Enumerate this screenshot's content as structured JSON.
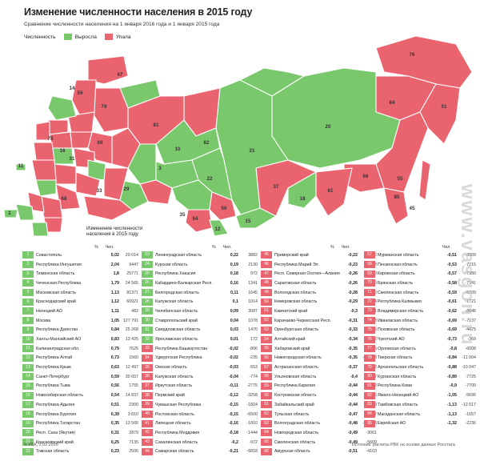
{
  "title": "Изменение численности населения в 2015 году",
  "subtitle": "Сравнение численности населения на 1 января 2016 года и 1 января 2015 года",
  "legend": {
    "label": "Численность",
    "grow_label": "Выросла",
    "fall_label": "Упала",
    "grow_color": "#7ac86c",
    "fall_color": "#ea6470"
  },
  "table_header": {
    "line1": "Изменение численности",
    "line2": "населения в 2015 году",
    "pct": "%",
    "abs": "Чел."
  },
  "columns": [
    [
      {
        "n": "1",
        "name": "Севастополь",
        "pct": "5,02",
        "abs": "20 014",
        "g": true
      },
      {
        "n": "2",
        "name": "Республика Ингушетия",
        "pct": "2,04",
        "abs": "9447",
        "g": true
      },
      {
        "n": "3",
        "name": "Тюменская область",
        "pct": "1,8",
        "abs": "25771",
        "g": true
      },
      {
        "n": "4",
        "name": "Чеченская Республика",
        "pct": "1,79",
        "abs": "24 565",
        "g": true
      },
      {
        "n": "5",
        "name": "Московская область",
        "pct": "1,13",
        "abs": "81371",
        "g": true
      },
      {
        "n": "6",
        "name": "Краснодарский край",
        "pct": "1,12",
        "abs": "60921",
        "g": true
      },
      {
        "n": "7",
        "name": "Ненецкий АО",
        "pct": "1,11",
        "abs": "482",
        "g": true
      },
      {
        "n": "8",
        "name": "Москва",
        "pct": "1,05",
        "abs": "127 791",
        "g": true
      },
      {
        "n": "9",
        "name": "Республика Дагестан",
        "pct": "0,84",
        "abs": "25 268",
        "g": true
      },
      {
        "n": "10",
        "name": "Ханты-Мансийский АО",
        "pct": "0,83",
        "abs": "13 425",
        "g": true
      },
      {
        "n": "11",
        "name": "Калининградская обл.",
        "pct": "0,79",
        "abs": "7625",
        "g": true
      },
      {
        "n": "12",
        "name": "Республика Алтай",
        "pct": "0,73",
        "abs": "1560",
        "g": true
      },
      {
        "n": "13",
        "name": "Республика Крым",
        "pct": "0,63",
        "abs": "12 497",
        "g": true
      },
      {
        "n": "14",
        "name": "Санкт-Петербург",
        "pct": "0,59",
        "abs": "30 657",
        "g": true
      },
      {
        "n": "15",
        "name": "Республика Тыва",
        "pct": "0,56",
        "abs": "1755",
        "g": true
      },
      {
        "n": "16",
        "name": "Новосибирская область",
        "pct": "0,54",
        "abs": "14 837",
        "g": true
      },
      {
        "n": "17",
        "name": "Республика Адыгея",
        "pct": "0,51",
        "abs": "2300",
        "g": true
      },
      {
        "n": "18",
        "name": "Республика Бурятия",
        "pct": "0,39",
        "abs": "3 810",
        "g": true
      },
      {
        "n": "19",
        "name": "Республика Татарстан",
        "pct": "0,35",
        "abs": "13 500",
        "g": true
      },
      {
        "n": "20",
        "name": "Респ. Саха (Якутия)",
        "pct": "0,31",
        "abs": "2879",
        "g": true
      },
      {
        "n": "21",
        "name": "Красноярский край",
        "pct": "0,25",
        "abs": "7135",
        "g": true
      },
      {
        "n": "22",
        "name": "Томская область",
        "pct": "0,23",
        "abs": "2506",
        "g": true
      }
    ],
    [
      {
        "n": "23",
        "name": "Ленинградская область",
        "pct": "0,22",
        "abs": "3882",
        "g": true
      },
      {
        "n": "24",
        "name": "Курская область",
        "pct": "0,19",
        "abs": "2130",
        "g": true
      },
      {
        "n": "25",
        "name": "Республика Хакасия",
        "pct": "0,18",
        "abs": "972",
        "g": true
      },
      {
        "n": "26",
        "name": "Кабардино-Балкарская Респ.",
        "pct": "0,16",
        "abs": "1341",
        "g": true
      },
      {
        "n": "27",
        "name": "Белгородская область",
        "pct": "0,11",
        "abs": "1645",
        "g": true
      },
      {
        "n": "28",
        "name": "Калужская область",
        "pct": "0,1",
        "abs": "1014",
        "g": true
      },
      {
        "n": "29",
        "name": "Челябинская область",
        "pct": "0,09",
        "abs": "3087",
        "g": true
      },
      {
        "n": "30",
        "name": "Ставропольский край",
        "pct": "0,04",
        "abs": "1078",
        "g": true
      },
      {
        "n": "31",
        "name": "Свердловская область",
        "pct": "0,03",
        "abs": "1470",
        "g": true
      },
      {
        "n": "32",
        "name": "Ярославская область",
        "pct": "0,01",
        "abs": "172",
        "g": true
      },
      {
        "n": "33",
        "name": "Республика Башкортостан",
        "pct": "-0,02",
        "abs": "-806",
        "g": false
      },
      {
        "n": "34",
        "name": "Удмуртская Республика",
        "pct": "-0,02",
        "abs": "-235",
        "g": false
      },
      {
        "n": "35",
        "name": "Омская область",
        "pct": "-0,03",
        "abs": "-553",
        "g": false
      },
      {
        "n": "36",
        "name": "Калужская область",
        "pct": "-0,04",
        "abs": "-774",
        "g": false
      },
      {
        "n": "37",
        "name": "Иркутская область",
        "pct": "-0,11",
        "abs": "-2775",
        "g": false
      },
      {
        "n": "38",
        "name": "Пермский край",
        "pct": "-0,12",
        "abs": "-3258",
        "g": false
      },
      {
        "n": "39",
        "name": "Чувашская Республика",
        "pct": "-0,15",
        "abs": "-1824",
        "g": false
      },
      {
        "n": "40",
        "name": "Ростовская область",
        "pct": "-0,15",
        "abs": "-6500",
        "g": false
      },
      {
        "n": "41",
        "name": "Липецкая область",
        "pct": "-0,16",
        "abs": "-1810",
        "g": false
      },
      {
        "n": "42",
        "name": "Республика Мордовия",
        "pct": "-0,18",
        "abs": "-1444",
        "g": false
      },
      {
        "n": "43",
        "name": "Сахалинская область",
        "pct": "-0,2",
        "abs": "-972",
        "g": false
      },
      {
        "n": "44",
        "name": "Самарская область",
        "pct": "-0,21",
        "abs": "-6818",
        "g": false
      }
    ],
    [
      {
        "n": "45",
        "name": "Приморский край",
        "pct": "-0,22",
        "abs": "-4346",
        "g": false
      },
      {
        "n": "46",
        "name": "Республика Марий Эл",
        "pct": "-0,23",
        "abs": "-1583",
        "g": false
      },
      {
        "n": "47",
        "name": "Респ. Северная Осетия—Алания",
        "pct": "-0,26",
        "abs": "-1800",
        "g": false
      },
      {
        "n": "48",
        "name": "Саратовская область",
        "pct": "-0,26",
        "abs": "-6370",
        "g": false
      },
      {
        "n": "49",
        "name": "Вологодская область",
        "pct": "-0,28",
        "abs": "-3350",
        "g": false
      },
      {
        "n": "50",
        "name": "Кемеровская область",
        "pct": "-0,29",
        "abs": "-7814",
        "g": false
      },
      {
        "n": "51",
        "name": "Камчатский край",
        "pct": "-0,3",
        "abs": "-941",
        "g": false
      },
      {
        "n": "52",
        "name": "Карачаево-Черкесская Респ.",
        "pct": "-0,31",
        "abs": "-1443",
        "g": false
      },
      {
        "n": "53",
        "name": "Оренбургская область",
        "pct": "-0,33",
        "abs": "-6675",
        "g": false
      },
      {
        "n": "54",
        "name": "Алтайский край",
        "pct": "-0,34",
        "abs": "-8152",
        "g": false
      },
      {
        "n": "55",
        "name": "Хабаровский край",
        "pct": "-0,35",
        "abs": "-4695",
        "g": false
      },
      {
        "n": "56",
        "name": "Нижегородская область",
        "pct": "-0,35",
        "abs": "-11 558",
        "g": false
      },
      {
        "n": "57",
        "name": "Астраханская область",
        "pct": "-0,37",
        "abs": "-3792",
        "g": false
      },
      {
        "n": "58",
        "name": "Ульяновская область",
        "pct": "-0,4",
        "abs": "-5017",
        "g": false
      },
      {
        "n": "59",
        "name": "Республика Карелия",
        "pct": "-0,44",
        "abs": "-2762",
        "g": false
      },
      {
        "n": "60",
        "name": "Костромская область",
        "pct": "-0,44",
        "abs": "-2866",
        "g": false
      },
      {
        "n": "61",
        "name": "Забайкальский край",
        "pct": "-0,44",
        "abs": "-4819",
        "g": false
      },
      {
        "n": "62",
        "name": "Тульская область",
        "pct": "-0,47",
        "abs": "-7087",
        "g": false
      },
      {
        "n": "63",
        "name": "Волгоградская область",
        "pct": "-0,48",
        "abs": "-12 448",
        "g": false
      },
      {
        "n": "64",
        "name": "Новгородская область",
        "pct": "-0,49",
        "abs": "-3061",
        "g": false
      },
      {
        "n": "65",
        "name": "Смоленская область",
        "pct": "-0,49",
        "abs": "-5609",
        "g": false
      },
      {
        "n": "66",
        "name": "Амурская область",
        "pct": "-0,51",
        "abs": "-4103",
        "g": false
      }
    ],
    [
      {
        "n": "67",
        "name": "Мурманская область",
        "pct": "-0,51",
        "abs": "-3909",
        "g": false
      },
      {
        "n": "68",
        "name": "Пензенская область",
        "pct": "-0,53",
        "abs": "-7215",
        "g": false
      },
      {
        "n": "69",
        "name": "Кировская область",
        "pct": "-0,57",
        "abs": "-7380",
        "g": false
      },
      {
        "n": "70",
        "name": "Брянская область",
        "pct": "-0,58",
        "abs": "-7141",
        "g": false
      },
      {
        "n": "71",
        "name": "Смоленская область",
        "pct": "-0,59",
        "abs": "-5709",
        "g": false
      },
      {
        "n": "72",
        "name": "Республика Калмыкия",
        "pct": "-0,61",
        "abs": "-1721",
        "g": false
      },
      {
        "n": "73",
        "name": "Владимирская область",
        "pct": "-0,62",
        "abs": "-8646",
        "g": false
      },
      {
        "n": "74",
        "name": "Ивановская область",
        "pct": "-0,69",
        "abs": "-7137",
        "g": false
      },
      {
        "n": "75",
        "name": "Псковская область",
        "pct": "-0,69",
        "abs": "-4475",
        "g": false
      },
      {
        "n": "76",
        "name": "Чукотский АО",
        "pct": "-0,73",
        "abs": "-369",
        "g": false
      },
      {
        "n": "77",
        "name": "Орловская область",
        "pct": "-0,8",
        "abs": "-6008",
        "g": false
      },
      {
        "n": "78",
        "name": "Тверская область",
        "pct": "-0,84",
        "abs": "-11 004",
        "g": false
      },
      {
        "n": "79",
        "name": "Архангельская область",
        "pct": "-0,88",
        "abs": "-10 047",
        "g": false
      },
      {
        "n": "80",
        "name": "Курганская область",
        "pct": "-0,89",
        "abs": "-7725",
        "g": false
      },
      {
        "n": "81",
        "name": "Республика Коми",
        "pct": "-0,9",
        "abs": "-7700",
        "g": false
      },
      {
        "n": "82",
        "name": "Ямало-Ненецкий АО",
        "pct": "-1,05",
        "abs": "-5696",
        "g": false
      },
      {
        "n": "83",
        "name": "Тамбовская область",
        "pct": "-1,13",
        "abs": "-12 017",
        "g": false
      },
      {
        "n": "84",
        "name": "Магаданская область",
        "pct": "-1,13",
        "abs": "-1657",
        "g": false
      },
      {
        "n": "85",
        "name": "Еврейская АО",
        "pct": "-1,32",
        "abs": "-2236",
        "g": false
      }
    ]
  ],
  "footer_left": "© РБК, 2.02.2016",
  "footer_right": "Источник: расчеты РБК на основе данных Росстата",
  "watermark": "www.vasgon.ru",
  "map_labels": [
    "76",
    "67",
    "84",
    "51",
    "20",
    "21",
    "82",
    "81",
    "10",
    "22",
    "18",
    "37",
    "61",
    "66",
    "55",
    "45",
    "35",
    "50",
    "54",
    "15",
    "12",
    "1",
    "11",
    "14",
    "78",
    "59",
    "79",
    "33",
    "69",
    "31",
    "29",
    "3",
    "16",
    "85",
    "68"
  ]
}
